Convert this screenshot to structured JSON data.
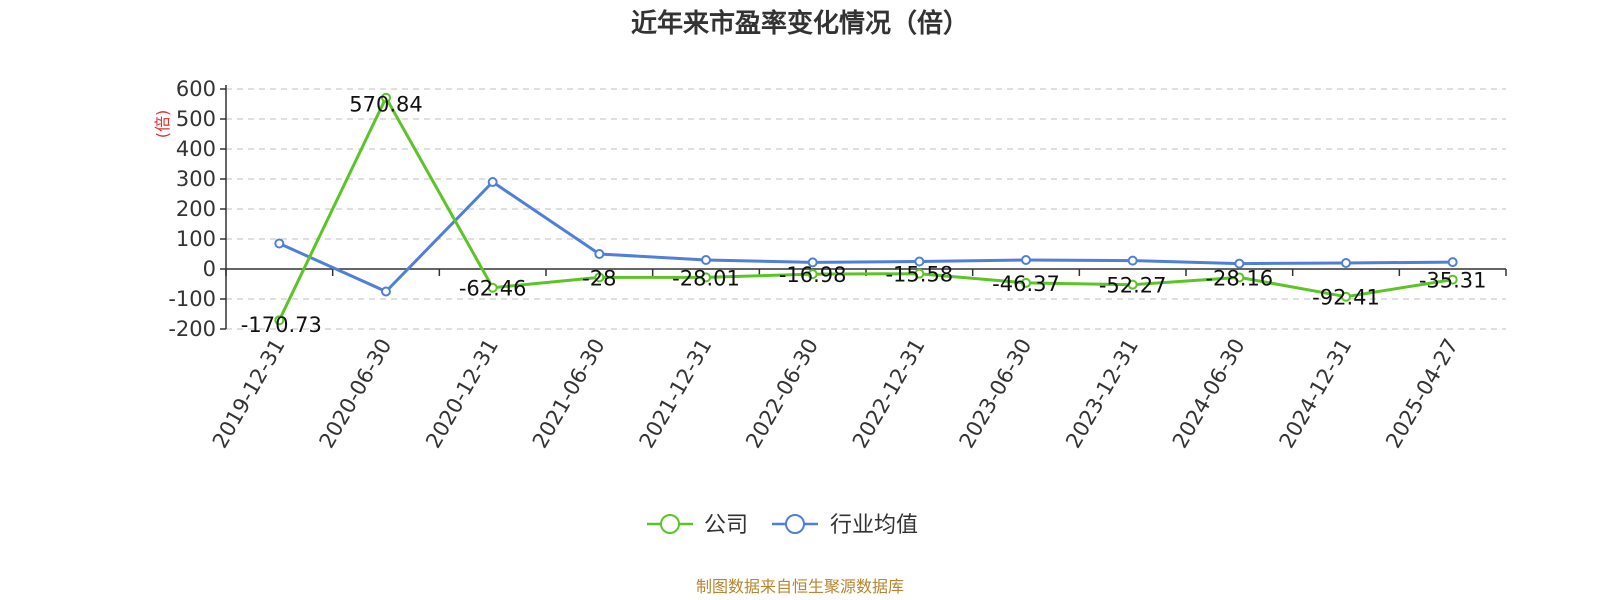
{
  "chart_data": {
    "type": "line",
    "title": "近年来市盈率变化情况（倍）",
    "ylabel": "(倍)",
    "ylim": [
      -200,
      600
    ],
    "yticks": [
      -200,
      -100,
      0,
      100,
      200,
      300,
      400,
      500,
      600
    ],
    "grid": true,
    "legend_position": "bottom-center",
    "categories": [
      "2019-12-31",
      "2020-06-30",
      "2020-12-31",
      "2021-06-30",
      "2021-12-31",
      "2022-06-30",
      "2022-12-31",
      "2023-06-30",
      "2023-12-31",
      "2024-06-30",
      "2024-12-31",
      "2025-04-27"
    ],
    "series": [
      {
        "name": "公司",
        "color": "#5cc427",
        "values": [
          -170.73,
          570.84,
          -62.46,
          -28,
          -28.01,
          -16.98,
          -15.58,
          -46.37,
          -52.27,
          -28.16,
          -92.41,
          -35.31
        ],
        "labels": [
          "-170.73",
          "570.84",
          "-62.46",
          "-28",
          "-28.01",
          "-16.98",
          "-15.58",
          "-46.37",
          "-52.27",
          "-28.16",
          "-92.41",
          "-35.31"
        ]
      },
      {
        "name": "行业均值",
        "color": "#4f7fdb",
        "values": [
          85,
          -75,
          290,
          50,
          30,
          22,
          25,
          30,
          28,
          18,
          20,
          23
        ]
      }
    ],
    "source": "制图数据来自恒生聚源数据库",
    "colors": {
      "axis": "#333333",
      "grid": "#cccccc",
      "unit": "#e03030",
      "source": "#b8862e"
    }
  }
}
